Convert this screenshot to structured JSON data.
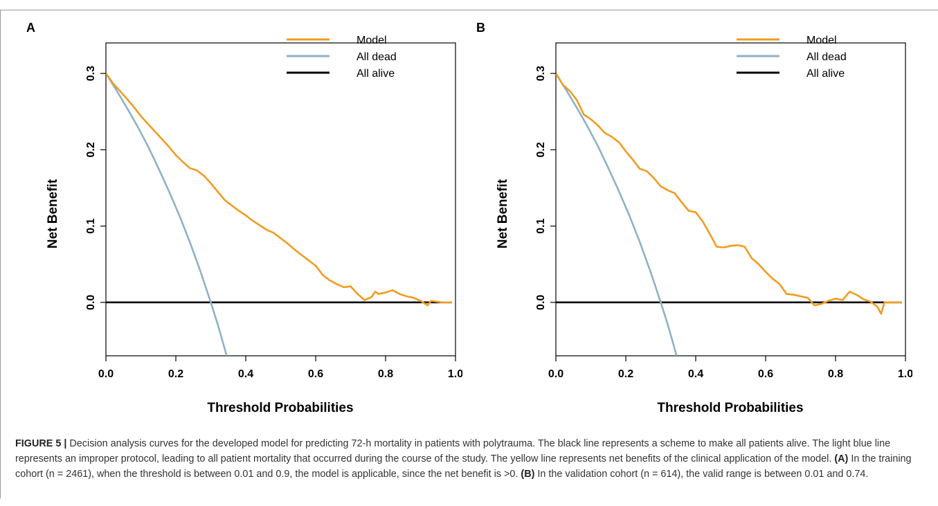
{
  "figure": {
    "caption_label": "FIGURE 5 |",
    "caption_text": "Decision analysis curves for the developed model for predicting 72-h mortality in patients with polytrauma. The black line represents a scheme to make all patients alive. The light blue line represents an improper protocol, leading to all patient mortality that occurred during the course of the study. The yellow line represents net benefits of the clinical application of the model.",
    "caption_a_label": "(A)",
    "caption_a_text": "In the training cohort (n = 2461), when the threshold is between 0.01 and 0.9, the model is applicable, since the net benefit is >0.",
    "caption_b_label": "(B)",
    "caption_b_text": "In the validation cohort (n = 614), the valid range is between 0.01 and 0.74."
  },
  "colors": {
    "model": "#F29B1F",
    "all_dead": "#8FB1C4",
    "all_alive": "#000000"
  },
  "chart_data": [
    {
      "type": "line",
      "panel": "A",
      "xlabel": "Threshold Probabilities",
      "ylabel": "Net Benefit",
      "xlim": [
        0,
        1
      ],
      "ylim": [
        -0.07,
        0.34
      ],
      "x_ticks": [
        "0.0",
        "0.2",
        "0.4",
        "0.6",
        "0.8",
        "1.0"
      ],
      "y_ticks": [
        "0.0",
        "0.1",
        "0.2",
        "0.3"
      ],
      "legend_position": "top-right",
      "series": [
        {
          "name": "Model",
          "x": [
            0.0,
            0.02,
            0.05,
            0.08,
            0.1,
            0.12,
            0.15,
            0.18,
            0.2,
            0.22,
            0.24,
            0.26,
            0.28,
            0.3,
            0.32,
            0.34,
            0.36,
            0.38,
            0.4,
            0.42,
            0.44,
            0.46,
            0.48,
            0.5,
            0.52,
            0.54,
            0.56,
            0.58,
            0.6,
            0.62,
            0.64,
            0.66,
            0.68,
            0.7,
            0.72,
            0.74,
            0.76,
            0.77,
            0.78,
            0.8,
            0.82,
            0.84,
            0.86,
            0.88,
            0.9,
            0.92,
            0.93,
            0.96,
            0.99
          ],
          "y": [
            0.3,
            0.287,
            0.272,
            0.256,
            0.244,
            0.234,
            0.219,
            0.204,
            0.193,
            0.184,
            0.176,
            0.173,
            0.166,
            0.156,
            0.145,
            0.134,
            0.127,
            0.12,
            0.114,
            0.107,
            0.101,
            0.095,
            0.091,
            0.084,
            0.077,
            0.069,
            0.062,
            0.055,
            0.048,
            0.036,
            0.029,
            0.024,
            0.02,
            0.021,
            0.011,
            0.003,
            0.007,
            0.014,
            0.011,
            0.013,
            0.016,
            0.011,
            0.008,
            0.006,
            0.002,
            -0.004,
            0.002,
            0.0,
            0.0
          ]
        },
        {
          "name": "All dead",
          "x": [
            0.0,
            0.03,
            0.06,
            0.09,
            0.12,
            0.15,
            0.18,
            0.21,
            0.24,
            0.27,
            0.3,
            0.32,
            0.34,
            0.345
          ],
          "y": [
            0.3,
            0.278,
            0.255,
            0.231,
            0.205,
            0.176,
            0.146,
            0.114,
            0.079,
            0.041,
            0.0,
            -0.029,
            -0.061,
            -0.07
          ]
        },
        {
          "name": "All alive",
          "x": [
            0.0,
            0.99
          ],
          "y": [
            0.0,
            0.0
          ]
        }
      ]
    },
    {
      "type": "line",
      "panel": "B",
      "xlabel": "Threshold Probabilities",
      "ylabel": "Net Benefit",
      "xlim": [
        0,
        1
      ],
      "ylim": [
        -0.07,
        0.34
      ],
      "x_ticks": [
        "0.0",
        "0.2",
        "0.4",
        "0.6",
        "0.8",
        "1.0"
      ],
      "y_ticks": [
        "0.0",
        "0.1",
        "0.2",
        "0.3"
      ],
      "legend_position": "top-right",
      "series": [
        {
          "name": "Model",
          "x": [
            0.0,
            0.02,
            0.04,
            0.06,
            0.08,
            0.1,
            0.12,
            0.14,
            0.16,
            0.18,
            0.2,
            0.22,
            0.24,
            0.26,
            0.28,
            0.3,
            0.32,
            0.34,
            0.36,
            0.38,
            0.4,
            0.42,
            0.44,
            0.46,
            0.48,
            0.5,
            0.52,
            0.54,
            0.56,
            0.58,
            0.6,
            0.62,
            0.64,
            0.66,
            0.68,
            0.7,
            0.72,
            0.74,
            0.76,
            0.78,
            0.8,
            0.82,
            0.84,
            0.86,
            0.88,
            0.9,
            0.92,
            0.93,
            0.94,
            0.96,
            0.99
          ],
          "y": [
            0.3,
            0.285,
            0.277,
            0.265,
            0.246,
            0.24,
            0.232,
            0.222,
            0.217,
            0.21,
            0.198,
            0.187,
            0.175,
            0.172,
            0.163,
            0.152,
            0.147,
            0.143,
            0.131,
            0.12,
            0.118,
            0.106,
            0.09,
            0.073,
            0.072,
            0.074,
            0.075,
            0.073,
            0.058,
            0.05,
            0.04,
            0.031,
            0.024,
            0.011,
            0.01,
            0.008,
            0.006,
            -0.004,
            -0.002,
            0.002,
            0.005,
            0.003,
            0.014,
            0.01,
            0.004,
            0.001,
            -0.006,
            -0.015,
            0.0,
            0.0,
            0.0
          ]
        },
        {
          "name": "All dead",
          "x": [
            0.0,
            0.03,
            0.06,
            0.09,
            0.12,
            0.15,
            0.18,
            0.21,
            0.24,
            0.27,
            0.3,
            0.32,
            0.34,
            0.345
          ],
          "y": [
            0.3,
            0.278,
            0.255,
            0.231,
            0.205,
            0.176,
            0.146,
            0.114,
            0.079,
            0.041,
            0.0,
            -0.029,
            -0.061,
            -0.07
          ]
        },
        {
          "name": "All alive",
          "x": [
            0.0,
            0.99
          ],
          "y": [
            0.0,
            0.0
          ]
        }
      ]
    }
  ]
}
